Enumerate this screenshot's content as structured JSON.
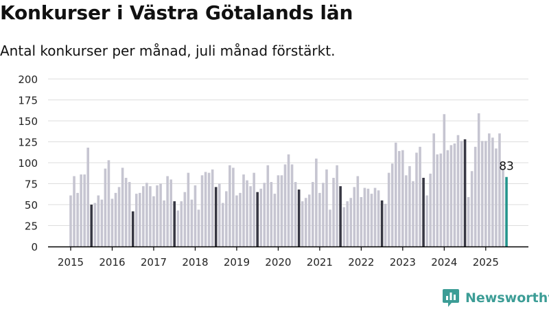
{
  "title": "Konkurser i Västra Götalands län",
  "subtitle": "Antal konkurser per månad, juli månad förstärkt.",
  "brand": {
    "name": "Newsworthy",
    "icon": "newsworthy-logo-icon",
    "color": "#3c9d96"
  },
  "colors": {
    "bar": "#c6c5d1",
    "highlight": "#373743",
    "latest": "#23948c",
    "grid": "#dddddd",
    "axis": "#000000"
  },
  "chart_data": {
    "type": "bar",
    "title": "Konkurser i Västra Götalands län",
    "subtitle": "Antal konkurser per månad, juli månad förstärkt.",
    "xlabel": "",
    "ylabel": "",
    "ylim": [
      0,
      200
    ],
    "yticks": [
      "0",
      "25",
      "50",
      "75",
      "100",
      "125",
      "150",
      "175",
      "200"
    ],
    "xticks": [
      "2015",
      "2016",
      "2017",
      "2018",
      "2019",
      "2020",
      "2021",
      "2022",
      "2023",
      "2024",
      "2025"
    ],
    "grid": true,
    "start_month": "2015-01",
    "highlight_month": 7,
    "annotation": "83",
    "values": [
      61,
      84,
      64,
      86,
      86,
      118,
      50,
      52,
      61,
      56,
      93,
      103,
      57,
      64,
      71,
      94,
      82,
      77,
      42,
      63,
      64,
      72,
      76,
      72,
      60,
      73,
      75,
      55,
      84,
      80,
      54,
      43,
      54,
      65,
      88,
      56,
      73,
      44,
      85,
      89,
      88,
      92,
      71,
      75,
      52,
      66,
      97,
      94,
      61,
      64,
      86,
      79,
      72,
      88,
      65,
      69,
      76,
      97,
      77,
      63,
      85,
      85,
      98,
      110,
      98,
      77,
      68,
      54,
      58,
      62,
      77,
      105,
      64,
      76,
      92,
      44,
      82,
      97,
      72,
      47,
      54,
      58,
      71,
      84,
      59,
      70,
      69,
      63,
      70,
      67,
      55,
      51,
      88,
      99,
      124,
      114,
      115,
      85,
      96,
      78,
      112,
      119,
      82,
      61,
      87,
      135,
      110,
      111,
      158,
      115,
      121,
      123,
      133,
      126,
      128,
      59,
      90,
      119,
      159,
      126,
      126,
      135,
      130,
      117,
      135,
      93,
      83
    ]
  }
}
